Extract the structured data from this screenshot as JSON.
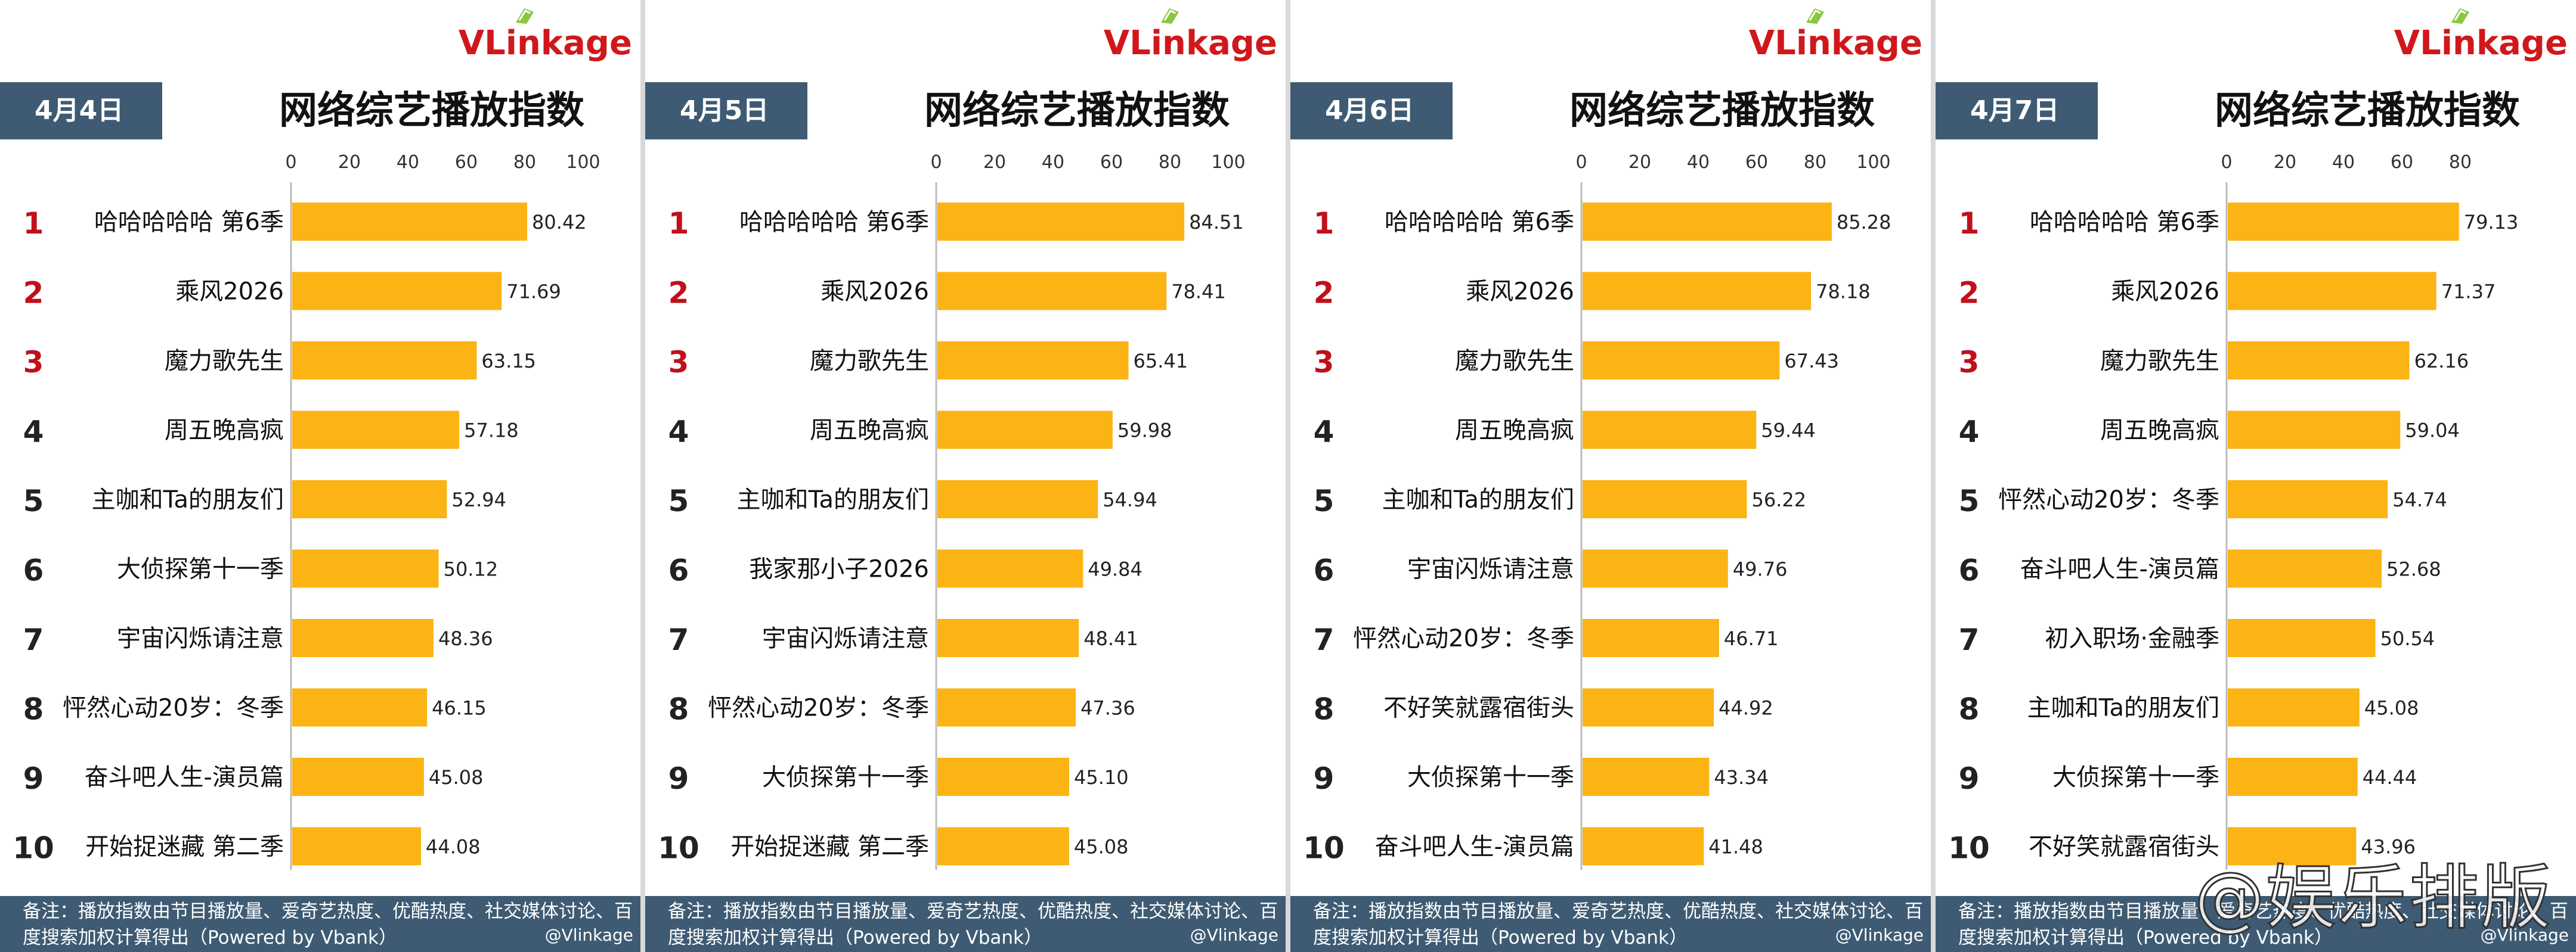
{
  "brand": {
    "logo_prefix": "VL",
    "logo_accent": "i",
    "logo_mid": "nk",
    "logo_suffix": "age"
  },
  "title": "网络综艺播放指数",
  "footer": {
    "note": "备注：播放指数由节目播放量、爱奇艺热度、优酷热度、社交媒体讨论、百度搜索加权计算得出（Powered by Vbank）",
    "source": "@Vlinkage"
  },
  "watermark": "@娱乐排版",
  "colors": {
    "bar": "#fbb414",
    "header": "#3e5b73",
    "rank_top": "#c0101b",
    "rank_other": "#222222"
  },
  "chart_data": [
    {
      "type": "bar",
      "date": "4月4日",
      "title": "网络综艺播放指数",
      "xlim": [
        0,
        100
      ],
      "ticks": [
        0,
        20,
        40,
        60,
        80,
        100
      ],
      "ranks": [
        1,
        2,
        3,
        4,
        5,
        6,
        7,
        8,
        9,
        10
      ],
      "categories": [
        "哈哈哈哈哈 第6季",
        "乘风2026",
        "魔力歌先生",
        "周五晚高疯",
        "主咖和Ta的朋友们",
        "大侦探第十一季",
        "宇宙闪烁请注意",
        "怦然心动20岁：冬季",
        "奋斗吧人生-演员篇",
        "开始捉迷藏 第二季"
      ],
      "values": [
        80.42,
        71.69,
        63.15,
        57.18,
        52.94,
        50.12,
        48.36,
        46.15,
        45.08,
        44.08
      ]
    },
    {
      "type": "bar",
      "date": "4月5日",
      "title": "网络综艺播放指数",
      "xlim": [
        0,
        100
      ],
      "ticks": [
        0,
        20,
        40,
        60,
        80,
        100
      ],
      "ranks": [
        1,
        2,
        3,
        4,
        5,
        6,
        7,
        8,
        9,
        10
      ],
      "categories": [
        "哈哈哈哈哈 第6季",
        "乘风2026",
        "魔力歌先生",
        "周五晚高疯",
        "主咖和Ta的朋友们",
        "我家那小子2026",
        "宇宙闪烁请注意",
        "怦然心动20岁：冬季",
        "大侦探第十一季",
        "开始捉迷藏 第二季"
      ],
      "values": [
        84.51,
        78.41,
        65.41,
        59.98,
        54.94,
        49.84,
        48.41,
        47.36,
        45.1,
        45.08
      ]
    },
    {
      "type": "bar",
      "date": "4月6日",
      "title": "网络综艺播放指数",
      "xlim": [
        0,
        100
      ],
      "ticks": [
        0,
        20,
        40,
        60,
        80,
        100
      ],
      "ranks": [
        1,
        2,
        3,
        4,
        5,
        6,
        7,
        8,
        9,
        10
      ],
      "categories": [
        "哈哈哈哈哈 第6季",
        "乘风2026",
        "魔力歌先生",
        "周五晚高疯",
        "主咖和Ta的朋友们",
        "宇宙闪烁请注意",
        "怦然心动20岁：冬季",
        "不好笑就露宿街头",
        "大侦探第十一季",
        "奋斗吧人生-演员篇"
      ],
      "values": [
        85.28,
        78.18,
        67.43,
        59.44,
        56.22,
        49.76,
        46.71,
        44.92,
        43.34,
        41.48
      ]
    },
    {
      "type": "bar",
      "date": "4月7日",
      "title": "网络综艺播放指数",
      "xlim": [
        0,
        90
      ],
      "ticks": [
        0,
        20,
        40,
        60,
        80
      ],
      "ranks": [
        1,
        2,
        3,
        4,
        5,
        6,
        7,
        8,
        9,
        10
      ],
      "categories": [
        "哈哈哈哈哈 第6季",
        "乘风2026",
        "魔力歌先生",
        "周五晚高疯",
        "怦然心动20岁：冬季",
        "奋斗吧人生-演员篇",
        "初入职场·金融季",
        "主咖和Ta的朋友们",
        "大侦探第十一季",
        "不好笑就露宿街头"
      ],
      "values": [
        79.13,
        71.37,
        62.16,
        59.04,
        54.74,
        52.68,
        50.54,
        45.08,
        44.44,
        43.96
      ]
    }
  ]
}
